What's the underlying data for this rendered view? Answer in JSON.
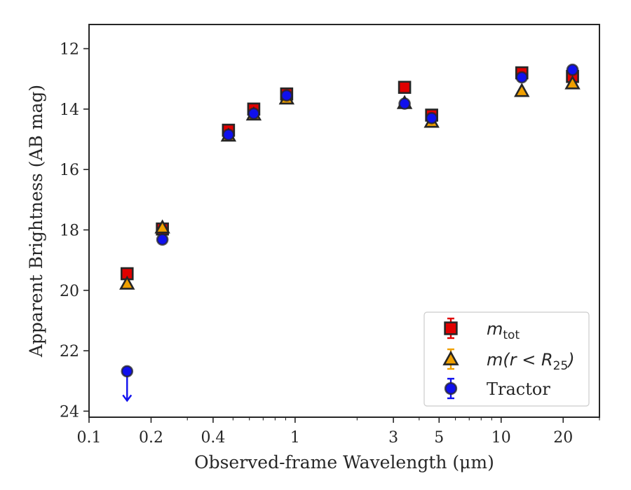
{
  "chart_data": {
    "type": "scatter",
    "xlabel": "Observed-frame Wavelength (μm)",
    "ylabel": "Apparent Brightness (AB mag)",
    "x_scale": "log",
    "xlim": [
      0.1,
      30
    ],
    "ylim": [
      24.2,
      11.2
    ],
    "y_inverted": true,
    "x_ticks": [
      0.1,
      0.2,
      0.4,
      1,
      3,
      5,
      10,
      20
    ],
    "x_tick_labels": [
      "0.1",
      "0.2",
      "0.4",
      "1",
      "3",
      "5",
      "10",
      "20"
    ],
    "y_ticks": [
      12,
      14,
      16,
      18,
      20,
      22,
      24
    ],
    "y_tick_labels": [
      "12",
      "14",
      "16",
      "18",
      "20",
      "22",
      "24"
    ],
    "legend_position": "lower-right",
    "series": [
      {
        "legend_math": "m",
        "legend_sub": "tot",
        "marker": "square",
        "color": "#e00000",
        "x": [
          0.153,
          0.227,
          0.475,
          0.63,
          0.91,
          3.4,
          4.6,
          12.6,
          22.2
        ],
        "y": [
          19.45,
          17.97,
          14.7,
          14.0,
          13.5,
          13.28,
          14.2,
          12.8,
          12.92
        ]
      },
      {
        "legend_math": "m(r < R",
        "legend_sub": "25",
        "legend_tail": ")",
        "marker": "triangle",
        "color": "#f0a000",
        "x": [
          0.153,
          0.227,
          0.475,
          0.63,
          0.91,
          3.4,
          4.6,
          12.6,
          22.2
        ],
        "y": [
          19.78,
          17.92,
          14.88,
          14.18,
          13.65,
          13.8,
          14.42,
          13.4,
          13.15
        ]
      },
      {
        "legend_label": "Tractor",
        "marker": "circle",
        "color": "#1010ee",
        "x": [
          0.153,
          0.227,
          0.475,
          0.63,
          0.91,
          3.4,
          4.6,
          12.6,
          22.2
        ],
        "y": [
          22.68,
          18.32,
          14.85,
          14.15,
          13.55,
          13.82,
          14.3,
          12.95,
          12.7
        ],
        "upper_limit": [
          true,
          false,
          false,
          false,
          false,
          false,
          false,
          false,
          false
        ]
      }
    ]
  }
}
